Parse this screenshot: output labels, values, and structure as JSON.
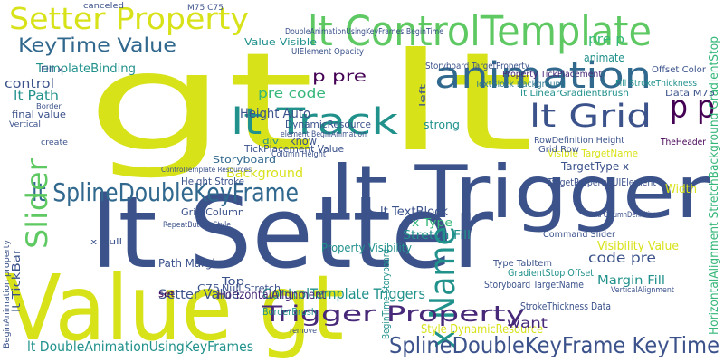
{
  "words": [
    "gt lt",
    "lt Setter",
    "Value gt",
    "lt Trigger",
    "lt ControlTemplate",
    "Setter Property",
    "animation",
    "lt Track",
    "lt Grid",
    "p p",
    "lt SplineDoubleKeyFrame",
    "Slider",
    "x Name",
    "Trigger Property",
    "SplineDoubleKeyFrame KeyTime",
    "KeyTime Value",
    "ControlTemplate Triggers",
    "lt DoubleAnimationUsingKeyFrames",
    "pre code",
    "p pre",
    "Height Auto",
    "DynamicResource",
    "control",
    "lt Path",
    "TemplateBinding",
    "Setter Value",
    "HorizontalAlignment",
    "Background",
    "Storyboard",
    "TickPlacement Value",
    "Path Margin",
    "x Type",
    "lt TextBlock",
    "Stretch Fill",
    "Property Visibility",
    "Style DynamicResource",
    "want",
    "code pre",
    "Visibility Value",
    "Margin Fill",
    "HorizontalAlignment StretchBackground GradientStop",
    "Offset Color",
    "Fill StrokeThickness",
    "Data M75",
    "TextBlock Background",
    "Property TickPlacement",
    "Storyboard TargetProperty",
    "DoubleAnimationUsingKeyFrames BeginTime",
    "UIElement Opacity",
    "Value Visible",
    "canceled",
    "M75 C75",
    "Visible TargetName",
    "RowDefinition Height",
    "Grid Row",
    "TargetType x",
    "TargetProperty UIElement",
    "Width",
    "Grid Column",
    "Height Stroke",
    "Null Stretch",
    "BorderBrush",
    "Top",
    "final value",
    "Border",
    "Fill x",
    "Command Slider",
    "Storyboard TargetName",
    "GradientStop Offset",
    "StrokeThickness Data",
    "lt LinearGradientBrush",
    "strong",
    "animate",
    "pre p",
    "lt TickBar",
    "TheHeader",
    "x Null",
    "RepeatButton Style",
    "BeginTime Storyboard",
    "set",
    "C75",
    "know",
    "Type TabItem",
    "Grid ColumnDefinitions",
    "VerticalAlignment",
    "element BeginAnimation",
    "ControlTemplate Resources",
    "BeginAnimation property",
    "Column Height",
    "remove",
    "div",
    "left",
    "Vertical",
    "create"
  ]
}
